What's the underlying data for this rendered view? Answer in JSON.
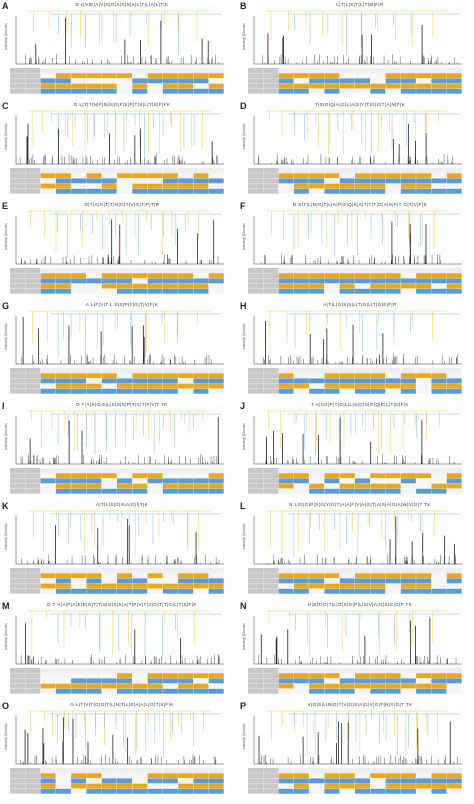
{
  "ylabel": "Intensity (Counts)",
  "colors": {
    "b_ion": "#f2c94c",
    "y_ion": "#7fb7e6",
    "spectrum": "#222222",
    "table_gold": "#e8a820",
    "table_blue": "#5b9bd5",
    "table_header": "#c8c8c8"
  },
  "panels": [
    {
      "letter": "A",
      "peptide": "D ɛ[V|E|A|V|G|G|A|S|S|A|L|T|L|A|L|T|K"
    },
    {
      "letter": "B",
      "peptide": "L|T|L|S|T|L|T|M|F|R"
    },
    {
      "letter": "C",
      "peptide": "G L|T|T|N|F|N|S|G|F|S|P|T|S|L|T|S|F|FK"
    },
    {
      "letter": "D",
      "peptide": "T|S|G|Q|A|G|L|A|S|Y|T|G|S|T|A|N|F|K"
    },
    {
      "letter": "E",
      "peptide": "D|T|A|G|T|T|N|G|T|V|G|T|P|T|R"
    },
    {
      "letter": "F",
      "peptide": "N S|T|L|N|G|T|L|A|P|S|Q|S|A|T|T|T|G|A|S|F|T G|T|V|F|K"
    },
    {
      "letter": "G",
      "peptide": "A L|F|V|T L S|S|P|T|G|T|V|F|K"
    },
    {
      "letter": "H",
      "peptide": "A|T|L|G|S|S|L|T|G|L|T|G|S|F|R"
    },
    {
      "letter": "I",
      "peptide": "D T|A|S|G|S|L|S|S|S|P|T|V|T|F|V|T TK"
    },
    {
      "letter": "J",
      "peptide": "T A|I|G|P|T|G|L|L|S|G|S|G|Q|E|L|T|N|F|K"
    },
    {
      "letter": "K",
      "peptide": "A|T|L|S|G|S|A|G|I|T|K"
    },
    {
      "letter": "L",
      "peptide": "N L|G|G|P|S|G|Y|G|T|A|A|F|V|A|G|T|A|S|A|G|A|W|V|G|T TK"
    },
    {
      "letter": "M",
      "peptide": "D T V|A|P|A|E|E|G|T|T|S|G|S|S|A|T|P|V|T|V|G|T|T|G|L|T|S|F|K"
    },
    {
      "letter": "N",
      "peptide": "H|S|T|G|T|L|G|S|G|P|L|S|V|A|G|S|G|G|F TK"
    },
    {
      "letter": "O",
      "peptide": "G L|T|V|T|G|G|T|L|N|T|L|S|A|A|L|G|T|S|F|K"
    },
    {
      "letter": "P",
      "peptide": "V|G|S|L|N|G|T|V|G|S|A|G|V|G|F|N|Y|G|T TK"
    }
  ],
  "chart_data": {
    "type": "bar",
    "description_scope": "16 annotated MS/MS spectra panels (A–P); per-panel peak values are not legible at this resolution",
    "panel_letters": [
      "A",
      "B",
      "C",
      "D",
      "E",
      "F",
      "G",
      "H",
      "I",
      "J",
      "K",
      "L",
      "M",
      "N",
      "O",
      "P"
    ],
    "ylabel": "Intensity (Counts)",
    "xlabel": "",
    "grid": false
  }
}
